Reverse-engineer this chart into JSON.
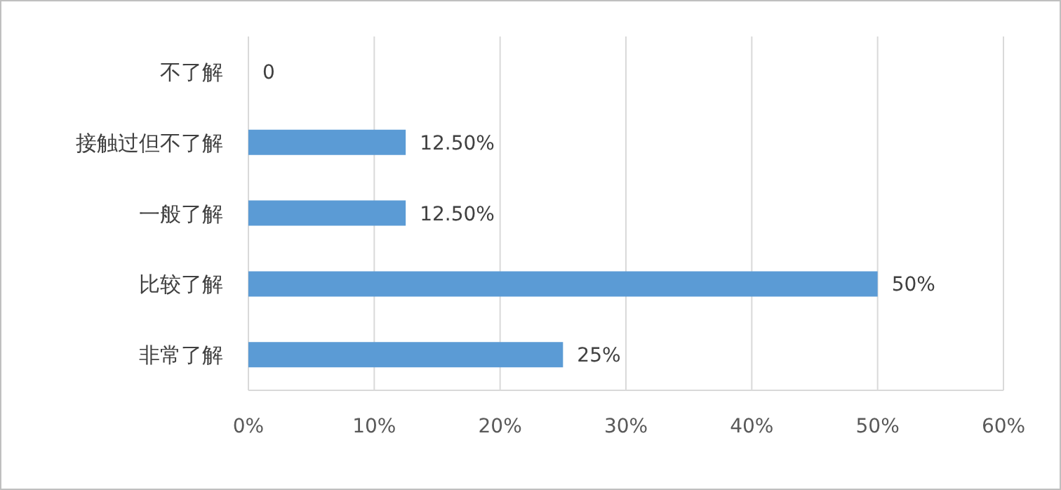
{
  "chart_data": {
    "type": "bar",
    "orientation": "horizontal",
    "categories": [
      "不了解",
      "接触过但不了解",
      "一般了解",
      "比较了解",
      "非常了解"
    ],
    "values": [
      0,
      12.5,
      12.5,
      50,
      25
    ],
    "value_labels": [
      "0",
      "12.50%",
      "12.50%",
      "50%",
      "25%"
    ],
    "color": "#5b9bd5",
    "xlim": [
      0,
      60
    ],
    "xticks": [
      {
        "value": 0,
        "label": "0%"
      },
      {
        "value": 10,
        "label": "10%"
      },
      {
        "value": 20,
        "label": "20%"
      },
      {
        "value": 30,
        "label": "30%"
      },
      {
        "value": 40,
        "label": "40%"
      },
      {
        "value": 50,
        "label": "50%"
      },
      {
        "value": 60,
        "label": "60%"
      }
    ],
    "grid": "x",
    "legend": false
  }
}
